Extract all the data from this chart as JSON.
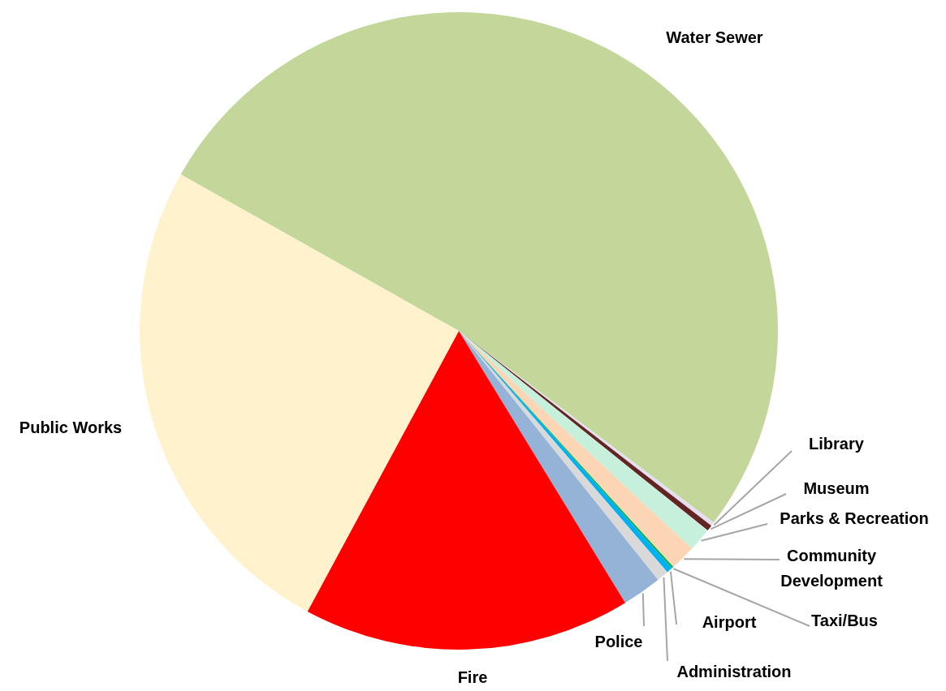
{
  "chart_data": {
    "type": "pie",
    "categories": [
      "Water Sewer",
      "Library",
      "Museum",
      "Parks & Recreation",
      "Community Development",
      "Taxi/Bus",
      "Airport",
      "Administration",
      "Police",
      "Fire",
      "Public Works"
    ],
    "values": [
      52.1,
      0.2,
      0.3,
      1.2,
      1.3,
      0.1,
      0.3,
      0.6,
      2.0,
      16.6,
      25.3
    ],
    "colors": [
      "#c4d79b",
      "#e4dff0",
      "#632523",
      "#c6efdc",
      "#fcd5b4",
      "#00b050",
      "#00b0f0",
      "#d9d9d9",
      "#95b3d7",
      "#ff0000",
      "#fff2cc"
    ]
  }
}
